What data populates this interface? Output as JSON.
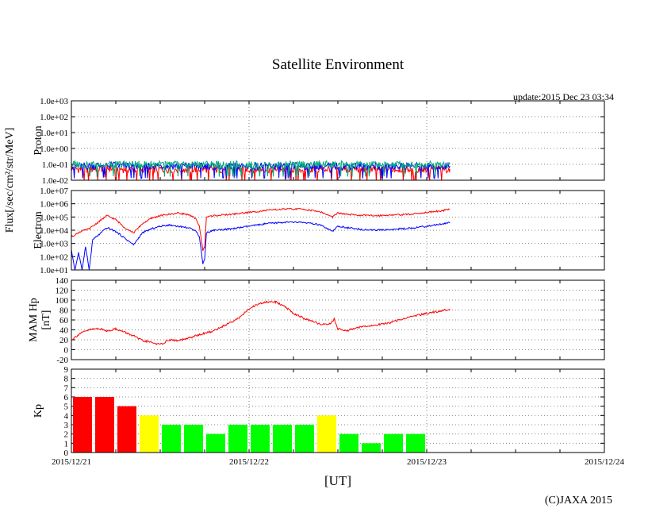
{
  "chart_data": {
    "type": "line",
    "title": "Satellite Environment",
    "update_text": "update:2015 Dec 23 03:34",
    "copyright": "(C)JAXA 2015",
    "xlabel": "[UT]",
    "x_range_days": [
      0,
      3
    ],
    "x_ticks": [
      "2015/12/21",
      "2015/12/22",
      "2015/12/23",
      "2015/12/24"
    ],
    "grid": "dotted",
    "panels": [
      {
        "name": "proton",
        "ylabel": [
          "Proton"
        ],
        "shared_label": "Flux[/sec/cm²/str/MeV]",
        "scale": "log",
        "ylim_exp": [
          -2,
          3
        ],
        "y_ticks": [
          "1.0e-02",
          "1.0e-01",
          "1.0e+00",
          "1.0e+01",
          "1.0e+02",
          "1.0e+03"
        ],
        "series": [
          {
            "name": "proton-red",
            "color": "#ff0000",
            "values_log": [
              -1.3,
              -1.3,
              -1.25,
              -1.3,
              -1.3,
              -1.3,
              -1.3,
              -1.3,
              -1.3,
              -1.3,
              -1.3,
              -1.3,
              -1.3,
              -1.3
            ]
          },
          {
            "name": "proton-blue",
            "color": "#0000ff",
            "values_log": [
              -1.1,
              -1.1,
              -1.05,
              -1.1,
              -1.1,
              -1.1,
              -1.1,
              -1.1,
              -1.1,
              -1.1,
              -1.1,
              -1.1,
              -1.1,
              -1.1
            ]
          },
          {
            "name": "proton-green",
            "color": "#00aa77",
            "values_log": [
              -1.0,
              -1.0,
              -1.0,
              -1.0,
              -1.0,
              -1.0,
              -1.0,
              -1.0,
              -1.0,
              -1.0,
              -1.0,
              -1.0,
              -1.0,
              -1.0
            ]
          }
        ],
        "x_days": [
          0,
          0.1,
          0.2,
          0.3,
          0.4,
          0.5,
          0.6,
          0.8,
          1.0,
          1.2,
          1.4,
          1.6,
          1.8,
          2.13
        ]
      },
      {
        "name": "electron",
        "ylabel": [
          "Electron"
        ],
        "scale": "log",
        "ylim_exp": [
          1,
          7
        ],
        "y_ticks": [
          "1.0e+01",
          "1.0e+02",
          "1.0e+03",
          "1.0e+04",
          "1.0e+05",
          "1.0e+06",
          "1.0e+07"
        ],
        "series": [
          {
            "name": "electron-red",
            "color": "#ff0000",
            "x_days": [
              0,
              0.05,
              0.1,
              0.15,
              0.2,
              0.25,
              0.3,
              0.35,
              0.4,
              0.45,
              0.5,
              0.55,
              0.6,
              0.65,
              0.7,
              0.72,
              0.74,
              0.75,
              0.76,
              0.78,
              0.8,
              0.9,
              1.0,
              1.1,
              1.2,
              1.3,
              1.4,
              1.47,
              1.5,
              1.55,
              1.6,
              1.7,
              1.8,
              1.9,
              2.0,
              2.1,
              2.13
            ],
            "values_log": [
              3.5,
              3.9,
              4.1,
              4.6,
              5.1,
              4.8,
              4.2,
              3.8,
              4.5,
              4.9,
              5.1,
              5.2,
              5.3,
              5.2,
              4.9,
              4.3,
              2.5,
              2.7,
              5.0,
              5.05,
              5.1,
              5.2,
              5.35,
              5.5,
              5.6,
              5.6,
              5.4,
              5.0,
              5.3,
              5.2,
              5.15,
              5.1,
              5.15,
              5.2,
              5.35,
              5.5,
              5.6
            ]
          },
          {
            "name": "electron-blue",
            "color": "#0000ff",
            "x_days": [
              0,
              0.02,
              0.04,
              0.06,
              0.08,
              0.1,
              0.12,
              0.15,
              0.2,
              0.25,
              0.3,
              0.35,
              0.4,
              0.45,
              0.5,
              0.55,
              0.6,
              0.65,
              0.7,
              0.72,
              0.74,
              0.75,
              0.76,
              0.78,
              0.8,
              0.9,
              1.0,
              1.1,
              1.2,
              1.3,
              1.4,
              1.47,
              1.5,
              1.55,
              1.6,
              1.7,
              1.8,
              1.9,
              2.0,
              2.1,
              2.13
            ],
            "values_log": [
              2.5,
              1.0,
              2.3,
              1.0,
              2.8,
              1.0,
              3.3,
              3.6,
              4.2,
              3.9,
              3.4,
              2.9,
              3.8,
              4.1,
              4.3,
              4.4,
              4.3,
              4.2,
              4.0,
              3.5,
              1.5,
              1.8,
              3.8,
              3.9,
              4.0,
              4.1,
              4.3,
              4.5,
              4.6,
              4.6,
              4.4,
              3.9,
              4.3,
              4.2,
              4.1,
              4.0,
              4.05,
              4.15,
              4.3,
              4.5,
              4.6
            ]
          }
        ]
      },
      {
        "name": "magnetic",
        "ylabel": [
          "MAM Hp",
          "[nT]"
        ],
        "scale": "linear",
        "ylim": [
          -20,
          140
        ],
        "y_ticks": [
          "-20",
          "0",
          "20",
          "40",
          "60",
          "80",
          "100",
          "120",
          "140"
        ],
        "series": [
          {
            "name": "mam-hp",
            "color": "#ff0000",
            "x_days": [
              0,
              0.05,
              0.1,
              0.15,
              0.2,
              0.25,
              0.3,
              0.35,
              0.4,
              0.45,
              0.5,
              0.55,
              0.6,
              0.65,
              0.7,
              0.75,
              0.8,
              0.85,
              0.9,
              0.95,
              1.0,
              1.05,
              1.1,
              1.15,
              1.2,
              1.25,
              1.3,
              1.35,
              1.4,
              1.45,
              1.48,
              1.5,
              1.55,
              1.6,
              1.7,
              1.8,
              1.9,
              2.0,
              2.1,
              2.13
            ],
            "values": [
              20,
              33,
              40,
              43,
              38,
              42,
              35,
              28,
              18,
              15,
              10,
              20,
              18,
              22,
              28,
              33,
              38,
              47,
              56,
              66,
              82,
              92,
              96,
              96,
              88,
              73,
              65,
              57,
              52,
              50,
              62,
              42,
              38,
              44,
              49,
              55,
              66,
              73,
              80,
              82
            ]
          }
        ]
      },
      {
        "name": "kp",
        "ylabel": [
          "Kp"
        ],
        "scale": "linear",
        "type": "bar",
        "ylim": [
          0,
          9
        ],
        "y_ticks": [
          "0",
          "1",
          "2",
          "3",
          "4",
          "5",
          "6",
          "7",
          "8",
          "9"
        ],
        "bar_width_days": 0.125,
        "bars": [
          {
            "value": 6,
            "color": "#ff0000"
          },
          {
            "value": 6,
            "color": "#ff0000"
          },
          {
            "value": 5,
            "color": "#ff0000"
          },
          {
            "value": 4,
            "color": "#ffff00"
          },
          {
            "value": 3,
            "color": "#00ff00"
          },
          {
            "value": 3,
            "color": "#00ff00"
          },
          {
            "value": 2,
            "color": "#00ff00"
          },
          {
            "value": 3,
            "color": "#00ff00"
          },
          {
            "value": 3,
            "color": "#00ff00"
          },
          {
            "value": 3,
            "color": "#00ff00"
          },
          {
            "value": 3,
            "color": "#00ff00"
          },
          {
            "value": 4,
            "color": "#ffff00"
          },
          {
            "value": 2,
            "color": "#00ff00"
          },
          {
            "value": 1,
            "color": "#00ff00"
          },
          {
            "value": 2,
            "color": "#00ff00"
          },
          {
            "value": 2,
            "color": "#00ff00"
          }
        ]
      }
    ]
  }
}
